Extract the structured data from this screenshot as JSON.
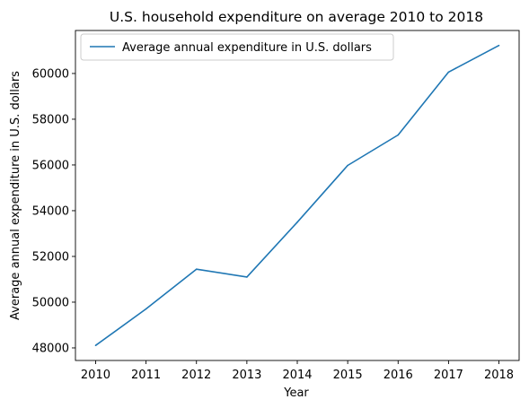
{
  "chart_data": {
    "type": "line",
    "title": "U.S. household expenditure on average 2010 to 2018",
    "xlabel": "Year",
    "ylabel": "Average annual expenditure in U.S. dollars",
    "x": [
      "2010",
      "2011",
      "2012",
      "2013",
      "2014",
      "2015",
      "2016",
      "2017",
      "2018"
    ],
    "series": [
      {
        "name": "Average annual expenditure in U.S. dollars",
        "color": "#1f77b4",
        "values": [
          48109,
          49705,
          51442,
          51100,
          53495,
          55978,
          57311,
          60060,
          61224
        ]
      }
    ],
    "yticks": [
      48000,
      50000,
      52000,
      54000,
      56000,
      58000,
      60000
    ],
    "xlim": [
      2009.6,
      2018.4
    ],
    "ylim": [
      47450,
      61880
    ],
    "grid": false,
    "legend_position": "top-left"
  }
}
